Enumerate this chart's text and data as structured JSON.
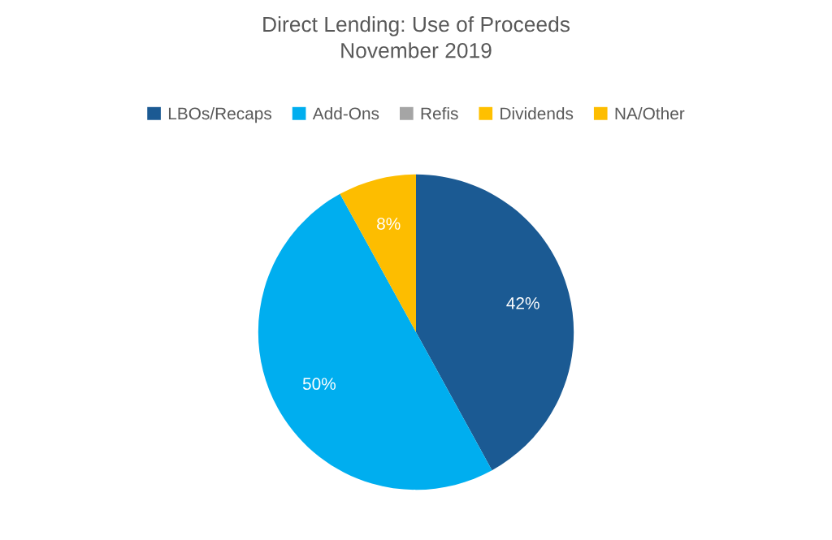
{
  "chart_data": {
    "type": "pie",
    "title": "Direct Lending: Use of Proceeds\nNovember 2019",
    "categories": [
      "LBOs/Recaps",
      "Add-Ons",
      "Refis",
      "Dividends",
      "NA/Other"
    ],
    "values": [
      42,
      50,
      0,
      0,
      8
    ],
    "colors": [
      "#1b5a93",
      "#00aeef",
      "#a5a5a5",
      "#ffc000",
      "#fdbd00"
    ],
    "value_labels": [
      "42%",
      "50%",
      null,
      null,
      "8%"
    ],
    "legend": "top"
  }
}
